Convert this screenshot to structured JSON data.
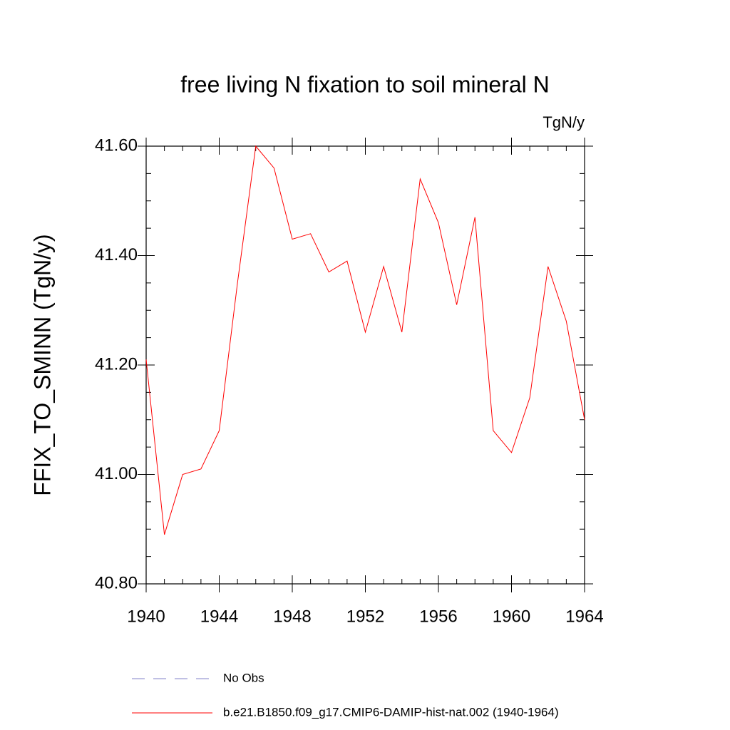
{
  "chart_data": {
    "type": "line",
    "title": "free living N fixation to soil mineral N",
    "units": "TgN/y",
    "y_label": "FFIX_TO_SMINN  (TgN/y)",
    "x": [
      1940,
      1941,
      1942,
      1943,
      1944,
      1945,
      1946,
      1947,
      1948,
      1949,
      1950,
      1951,
      1952,
      1953,
      1954,
      1955,
      1956,
      1957,
      1958,
      1959,
      1960,
      1961,
      1962,
      1963,
      1964
    ],
    "series": [
      {
        "name": "No Obs",
        "color": "#8080c8",
        "dashed": true,
        "values": [
          null,
          null,
          null,
          null,
          null,
          null,
          null,
          null,
          null,
          null,
          null,
          null,
          null,
          null,
          null,
          null,
          null,
          null,
          null,
          null,
          null,
          null,
          null,
          null,
          null
        ]
      },
      {
        "name": "b.e21.B1850.f09_g17.CMIP6-DAMIP-hist-nat.002 (1940-1964)",
        "color": "#ff0000",
        "dashed": false,
        "values": [
          41.21,
          40.89,
          41.0,
          41.01,
          41.08,
          41.35,
          41.6,
          41.56,
          41.43,
          41.44,
          41.37,
          41.39,
          41.26,
          41.38,
          41.26,
          41.54,
          41.46,
          41.31,
          41.47,
          41.08,
          41.04,
          41.14,
          41.38,
          41.28,
          41.1
        ]
      }
    ],
    "xlim": [
      1940,
      1964
    ],
    "xticks": [
      1940,
      1944,
      1948,
      1952,
      1956,
      1960,
      1964
    ],
    "xminorticks": [
      1941,
      1942,
      1943,
      1945,
      1946,
      1947,
      1949,
      1950,
      1951,
      1953,
      1954,
      1955,
      1957,
      1958,
      1959,
      1961,
      1962,
      1963
    ],
    "ylim": [
      40.8,
      41.6
    ],
    "yticks": [
      {
        "value": 40.8,
        "label": "40.80"
      },
      {
        "value": 41.0,
        "label": "41.00"
      },
      {
        "value": 41.2,
        "label": "41.20"
      },
      {
        "value": 41.4,
        "label": "41.40"
      },
      {
        "value": 41.6,
        "label": "41.60"
      }
    ],
    "yminorticks": [
      40.85,
      40.9,
      40.95,
      41.05,
      41.1,
      41.15,
      41.25,
      41.3,
      41.35,
      41.45,
      41.5,
      41.55
    ]
  }
}
